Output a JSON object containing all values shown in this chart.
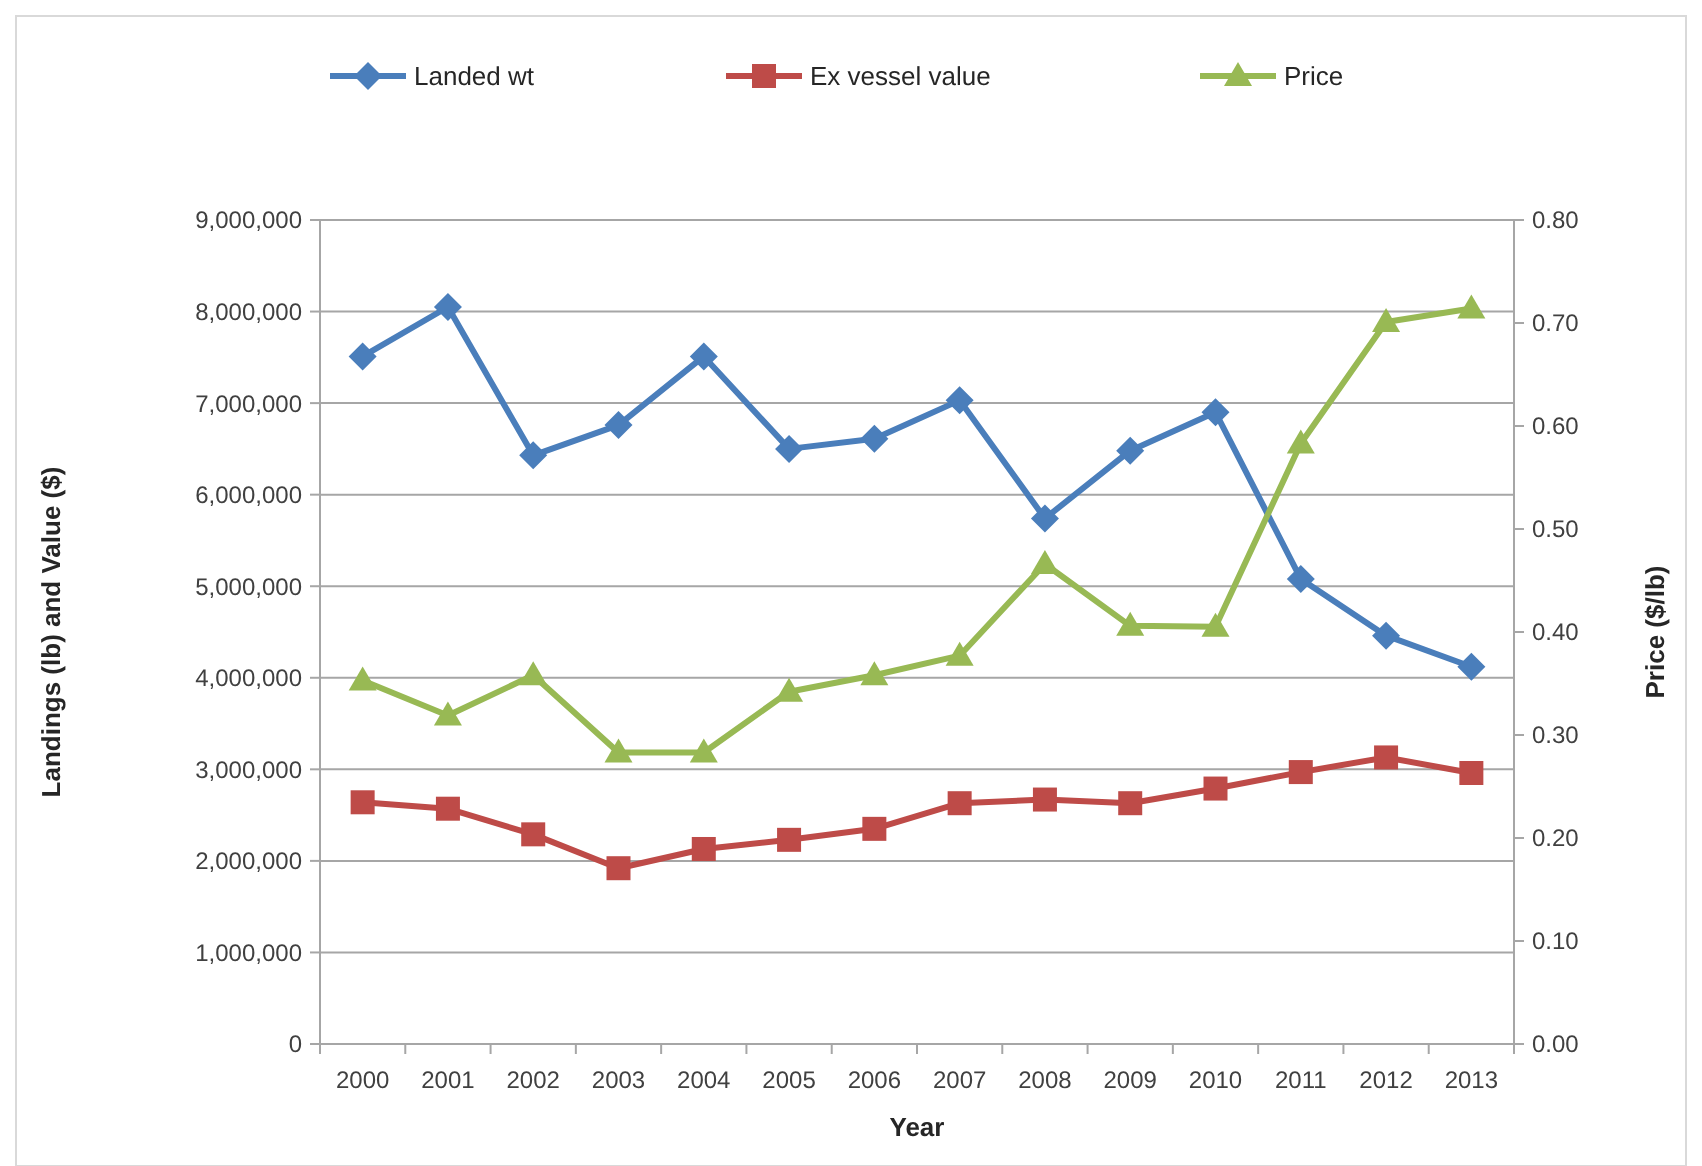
{
  "chart_data": {
    "type": "line",
    "xlabel": "Year",
    "ylabel": "Landings (lb) and Value ($)",
    "y2label": "Price ($/lb)",
    "categories": [
      "2000",
      "2001",
      "2002",
      "2003",
      "2004",
      "2005",
      "2006",
      "2007",
      "2008",
      "2009",
      "2010",
      "2011",
      "2012",
      "2013"
    ],
    "series": [
      {
        "name": "Landed wt",
        "color": "#4a7ebb",
        "marker": "diamond",
        "values": [
          7510000,
          8050000,
          6430000,
          6760000,
          7510000,
          6500000,
          6610000,
          7030000,
          5740000,
          6480000,
          6900000,
          5080000,
          4460000,
          4120000
        ]
      },
      {
        "name": "Ex vessel value",
        "color": "#be4b48",
        "marker": "square",
        "values": [
          2640000,
          2570000,
          2290000,
          1920000,
          2130000,
          2230000,
          2350000,
          2630000,
          2670000,
          2630000,
          2790000,
          2970000,
          3130000,
          2960000
        ]
      },
      {
        "name": "Price",
        "color": "#98b954",
        "marker": "triangle",
        "axis": "y2",
        "values": [
          0.353,
          0.319,
          0.358,
          0.283,
          0.283,
          0.342,
          0.358,
          0.377,
          0.466,
          0.406,
          0.405,
          0.583,
          0.701,
          0.714
        ]
      }
    ],
    "ylim": [
      0,
      9000000
    ],
    "yticks": [
      {
        "value": 0,
        "label": "0"
      },
      {
        "value": 1000000,
        "label": "1,000,000"
      },
      {
        "value": 2000000,
        "label": "2,000,000"
      },
      {
        "value": 3000000,
        "label": "3,000,000"
      },
      {
        "value": 4000000,
        "label": "4,000,000"
      },
      {
        "value": 5000000,
        "label": "5,000,000"
      },
      {
        "value": 6000000,
        "label": "6,000,000"
      },
      {
        "value": 7000000,
        "label": "7,000,000"
      },
      {
        "value": 8000000,
        "label": "8,000,000"
      },
      {
        "value": 9000000,
        "label": "9,000,000"
      }
    ],
    "y2lim": [
      0,
      0.8
    ],
    "y2ticks": [
      {
        "value": 0,
        "label": "0.00"
      },
      {
        "value": 0.1,
        "label": "0.10"
      },
      {
        "value": 0.2,
        "label": "0.20"
      },
      {
        "value": 0.3,
        "label": "0.30"
      },
      {
        "value": 0.4,
        "label": "0.40"
      },
      {
        "value": 0.5,
        "label": "0.50"
      },
      {
        "value": 0.6,
        "label": "0.60"
      },
      {
        "value": 0.7,
        "label": "0.70"
      },
      {
        "value": 0.8,
        "label": "0.80"
      }
    ],
    "grid": "y",
    "legend": "top",
    "line_style": "solid"
  }
}
